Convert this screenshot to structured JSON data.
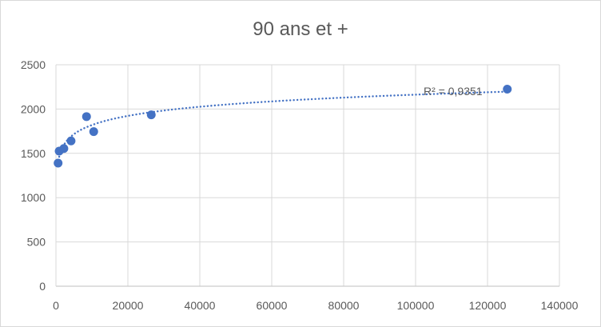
{
  "chart_data": {
    "type": "scatter",
    "title": "90 ans et +",
    "xlabel": "",
    "ylabel": "",
    "xlim": [
      0,
      140000
    ],
    "ylim": [
      0,
      2500
    ],
    "x_ticks": [
      0,
      20000,
      40000,
      60000,
      80000,
      100000,
      120000,
      140000
    ],
    "y_ticks": [
      0,
      500,
      1000,
      1500,
      2000,
      2500
    ],
    "grid": true,
    "legend": "none",
    "series": [
      {
        "points": [
          {
            "x": 600,
            "y": 1390
          },
          {
            "x": 900,
            "y": 1525
          },
          {
            "x": 2200,
            "y": 1555
          },
          {
            "x": 4200,
            "y": 1640
          },
          {
            "x": 8500,
            "y": 1915
          },
          {
            "x": 10500,
            "y": 1745
          },
          {
            "x": 26500,
            "y": 1935
          },
          {
            "x": 125500,
            "y": 2225
          }
        ],
        "color": "#4472c4"
      }
    ],
    "trendline": {
      "type": "logarithmic",
      "style": "dotted",
      "color": "#4472c4",
      "x_range": [
        900,
        125500
      ],
      "label": "R² = 0,9351"
    }
  }
}
